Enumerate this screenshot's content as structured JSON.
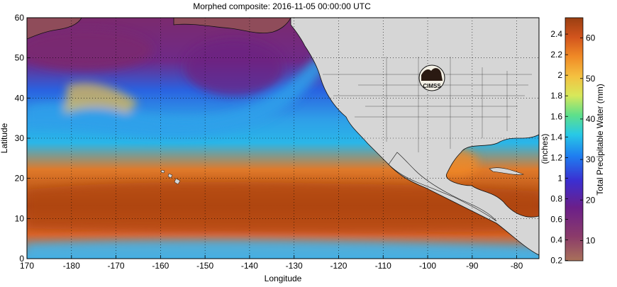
{
  "title": "Morphed composite: 2016-11-05 00:00:00 UTC",
  "map": {
    "xlabel": "Longitude",
    "ylabel": "Latitude",
    "x_ticks": [
      "170",
      "-180",
      "-170",
      "-160",
      "-150",
      "-140",
      "-130",
      "-120",
      "-110",
      "-100",
      "-90",
      "-80"
    ],
    "y_ticks": [
      "0",
      "10",
      "20",
      "30",
      "40",
      "50",
      "60"
    ],
    "lon_range": [
      170,
      285
    ],
    "lat_range": [
      0,
      60
    ],
    "grid": "dotted",
    "logo_text": "CIMSS"
  },
  "colorbar": {
    "mm_label": "Total Precipitable Water (mm)",
    "inch_label": "(inches)",
    "mm_ticks": [
      "10",
      "20",
      "30",
      "40",
      "50",
      "60"
    ],
    "inch_ticks": [
      "0.2",
      "0.4",
      "0.6",
      "0.8",
      "1",
      "1.2",
      "1.4",
      "1.6",
      "1.8",
      "2",
      "2.2",
      "2.4"
    ],
    "mm_range": [
      5,
      65
    ],
    "colors": [
      "#a9715a",
      "#8b3b6a",
      "#6b1f8a",
      "#3b2fd1",
      "#1f7df0",
      "#28c9e6",
      "#5fe08a",
      "#d8e85a",
      "#f4c040",
      "#f08a26",
      "#d2541d",
      "#9a3f12"
    ]
  }
}
